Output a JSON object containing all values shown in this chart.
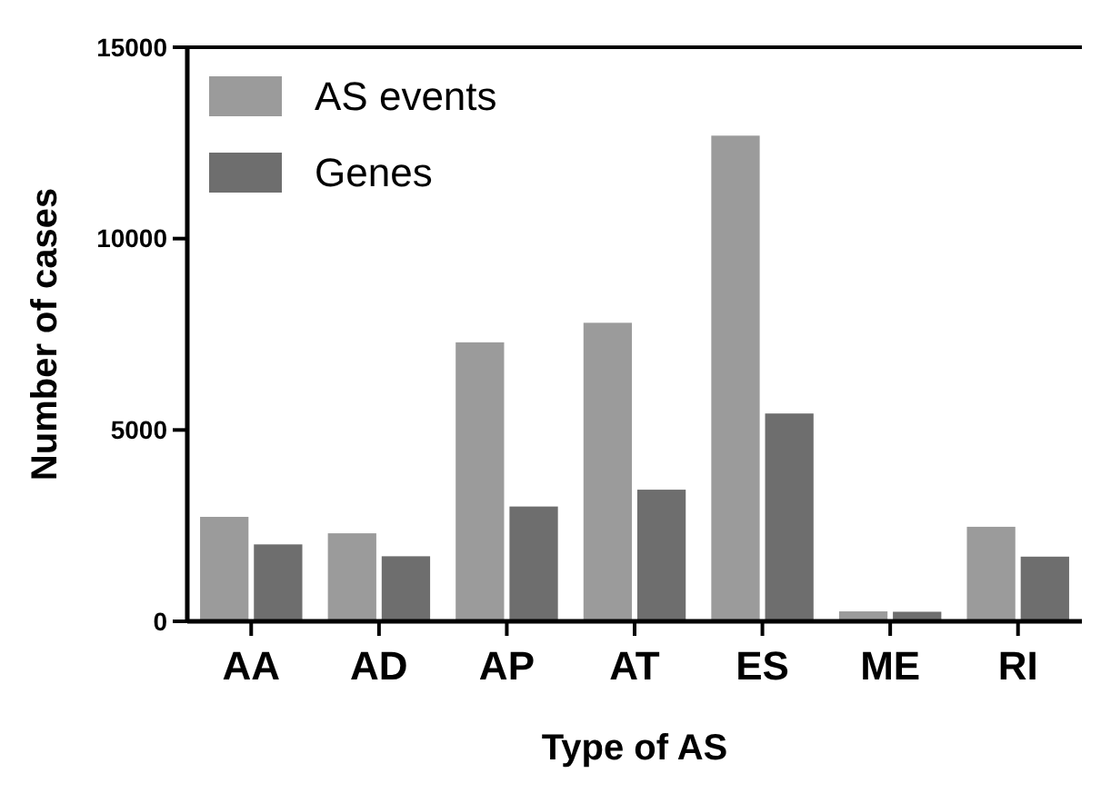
{
  "chart_data": {
    "type": "bar",
    "xlabel": "Type of AS",
    "ylabel": "Number of cases",
    "categories": [
      "AA",
      "AD",
      "AP",
      "AT",
      "ES",
      "ME",
      "RI"
    ],
    "series": [
      {
        "name": "AS events",
        "color": "#9b9b9b",
        "values": [
          2730,
          2300,
          7290,
          7800,
          12690,
          260,
          2470
        ]
      },
      {
        "name": "Genes",
        "color": "#6e6e6e",
        "values": [
          2010,
          1700,
          3000,
          3440,
          5430,
          250,
          1690
        ]
      }
    ],
    "ylim": [
      0,
      15000
    ],
    "yticks": [
      0,
      5000,
      10000,
      15000
    ],
    "grid": false,
    "legend": "top left"
  }
}
